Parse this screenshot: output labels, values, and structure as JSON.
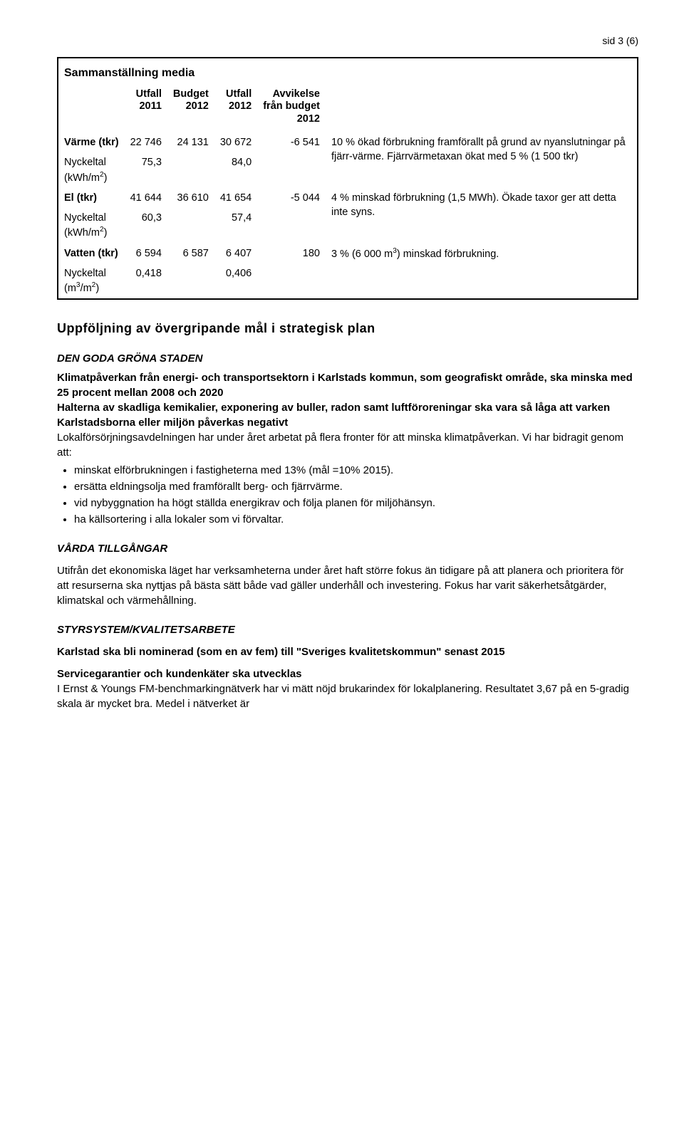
{
  "page_number": "sid 3 (6)",
  "table": {
    "title": "Sammanställning media",
    "headers": {
      "c1": "",
      "c2a": "Utfall",
      "c2b": "2011",
      "c3a": "Budget",
      "c3b": "2012",
      "c4a": "Utfall",
      "c4b": "2012",
      "c5a": "Avvikelse",
      "c5b": "från budget",
      "c5c": "2012",
      "c6": ""
    },
    "rows": [
      {
        "label": "Värme (tkr)",
        "c2": "22 746",
        "c3": "24 131",
        "c4": "30 672",
        "c5": "-6 541",
        "note": "10 % ökad förbrukning framförallt på grund av nyanslutningar på fjärr-värme. Fjärrvärmetaxan ökat med 5 % (1 500 tkr)"
      },
      {
        "label_html": "Nyckeltal<br>(kWh/m<sup>2</sup>)",
        "c2": "75,3",
        "c3": "",
        "c4": "84,0",
        "c5": "",
        "note": ""
      },
      {
        "label": "El (tkr)",
        "c2": "41 644",
        "c3": "36 610",
        "c4": "41 654",
        "c5": "-5 044",
        "note": "4 % minskad förbrukning (1,5 MWh). Ökade taxor ger att detta inte syns."
      },
      {
        "label_html": "Nyckeltal<br>(kWh/m<sup>2</sup>)",
        "c2": "60,3",
        "c3": "",
        "c4": "57,4",
        "c5": "",
        "note": ""
      },
      {
        "label": "Vatten (tkr)",
        "c2": "6 594",
        "c3": "6 587",
        "c4": "6 407",
        "c5": "180",
        "note_html": "3 % (6 000 m<sup>3</sup>) minskad förbrukning."
      },
      {
        "label_html": "Nyckeltal<br>(m<sup>3</sup>/m<sup>2</sup>)",
        "c2": "0,418",
        "c3": "",
        "c4": "0,406",
        "c5": "",
        "note": ""
      }
    ]
  },
  "section_title": "Uppföljning av övergripande mål i strategisk plan",
  "groda": {
    "heading": "DEN GODA GRÖNA STADEN",
    "bold_lines": [
      "Klimatpåverkan från energi- och transportsektorn i Karlstads kommun, som geografiskt område, ska minska med 25 procent mellan 2008 och 2020",
      "Halterna av skadliga kemikalier, exponering av buller, radon samt luftföroreningar ska vara så låga att varken Karlstadsborna eller miljön påverkas negativt"
    ],
    "intro": "Lokalförsörjningsavdelningen har under året arbetat på flera fronter för att minska klimatpåverkan. Vi har bidragit genom att:",
    "bullets": [
      "minskat elförbrukningen i fastigheterna med 13% (mål =10% 2015).",
      "ersätta eldningsolja med framförallt berg- och fjärrvärme.",
      "vid nybyggnation ha högt ställda energikrav och följa planen för miljöhänsyn.",
      "ha källsortering i alla lokaler som vi förvaltar."
    ]
  },
  "varda": {
    "heading": "VÅRDA TILLGÅNGAR",
    "text": "Utifrån det ekonomiska läget har verksamheterna under året haft större fokus än tidigare på att planera och prioritera för att resurserna ska nyttjas på bästa sätt både vad gäller underhåll och investering. Fokus har varit säkerhetsåtgärder, klimatskal och värmehållning."
  },
  "styrsystem": {
    "heading": "STYRSYSTEM/KVALITETSARBETE",
    "bold_text": "Karlstad ska bli nominerad (som en av fem) till \"Sveriges kvalitetskommun\" senast 2015",
    "sub_bold": "Servicegarantier och kundenkäter ska utvecklas",
    "text": "I Ernst & Youngs FM-benchmarkingnätverk har vi mätt nöjd brukarindex för lokalplanering. Resultatet 3,67 på en 5-gradig skala är mycket bra. Medel i nätverket är"
  },
  "colors": {
    "text": "#000000",
    "background": "#ffffff",
    "border": "#000000"
  }
}
